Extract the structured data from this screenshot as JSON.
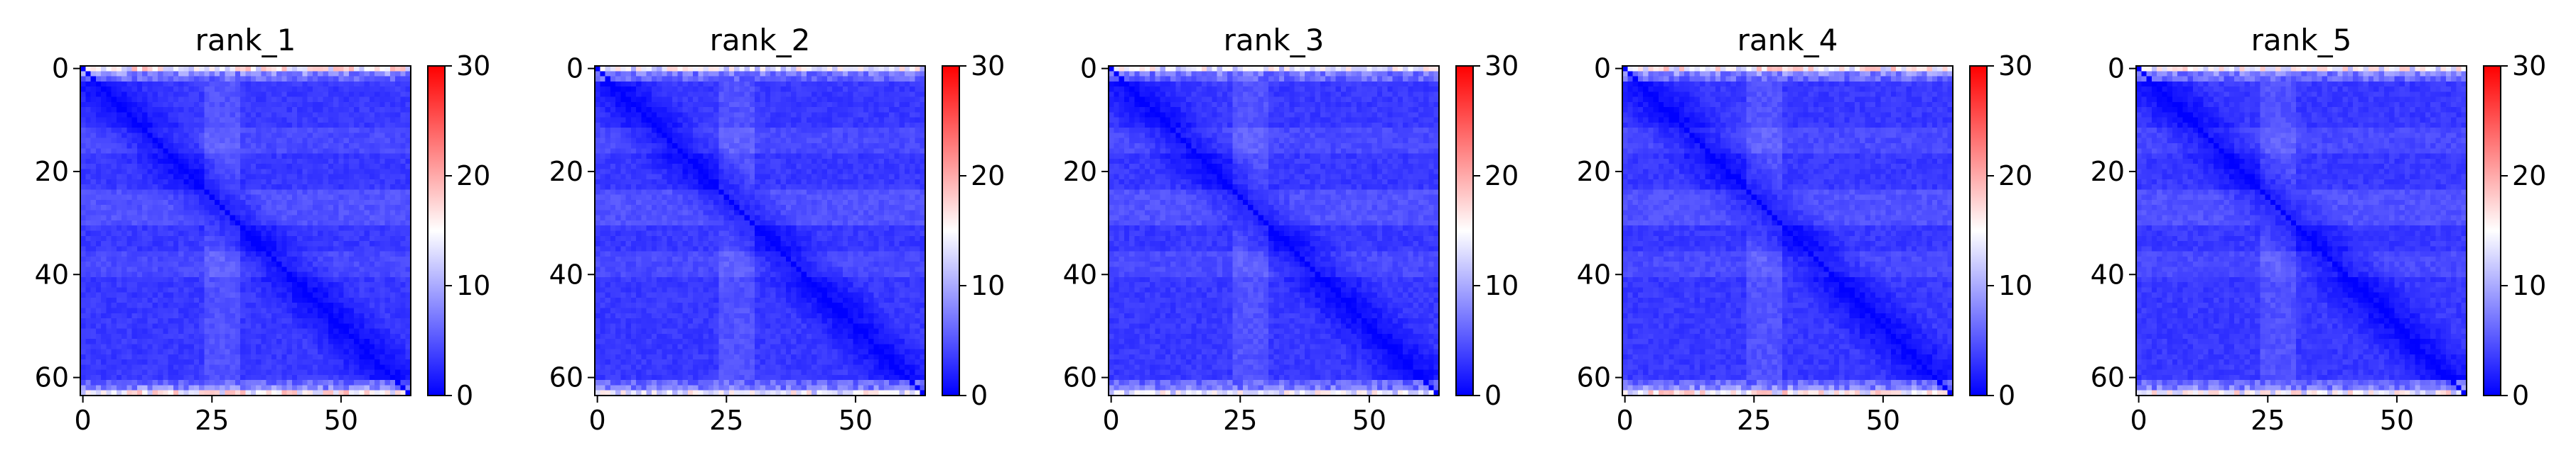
{
  "chart_data": [
    {
      "type": "heatmap",
      "title": "rank_1",
      "matrix_size": 64,
      "xticks": [
        0,
        25,
        50
      ],
      "yticks": [
        0,
        20,
        40,
        60
      ],
      "colorbar": {
        "min": 0,
        "max": 30,
        "ticks": [
          0,
          10,
          20,
          30
        ],
        "colormap": "bwr"
      },
      "value_pattern": {
        "near_diagonal": 0,
        "typical_off_diagonal": 3,
        "top_bottom_rows": 18,
        "max": 30
      }
    },
    {
      "type": "heatmap",
      "title": "rank_2",
      "matrix_size": 64,
      "xticks": [
        0,
        25,
        50
      ],
      "yticks": [
        0,
        20,
        40,
        60
      ],
      "colorbar": {
        "min": 0,
        "max": 30,
        "ticks": [
          0,
          10,
          20,
          30
        ],
        "colormap": "bwr"
      },
      "value_pattern": {
        "near_diagonal": 0,
        "typical_off_diagonal": 3,
        "top_bottom_rows": 16,
        "max": 30
      }
    },
    {
      "type": "heatmap",
      "title": "rank_3",
      "matrix_size": 64,
      "xticks": [
        0,
        25,
        50
      ],
      "yticks": [
        0,
        20,
        40,
        60
      ],
      "colorbar": {
        "min": 0,
        "max": 30,
        "ticks": [
          0,
          10,
          20,
          30
        ],
        "colormap": "bwr"
      },
      "value_pattern": {
        "near_diagonal": 0,
        "typical_off_diagonal": 3,
        "top_bottom_rows": 16,
        "max": 30
      }
    },
    {
      "type": "heatmap",
      "title": "rank_4",
      "matrix_size": 64,
      "xticks": [
        0,
        25,
        50
      ],
      "yticks": [
        0,
        20,
        40,
        60
      ],
      "colorbar": {
        "min": 0,
        "max": 30,
        "ticks": [
          0,
          10,
          20,
          30
        ],
        "colormap": "bwr"
      },
      "value_pattern": {
        "near_diagonal": 0,
        "typical_off_diagonal": 3,
        "top_bottom_rows": 18,
        "max": 30
      }
    },
    {
      "type": "heatmap",
      "title": "rank_5",
      "matrix_size": 64,
      "xticks": [
        0,
        25,
        50
      ],
      "yticks": [
        0,
        20,
        40,
        60
      ],
      "colorbar": {
        "min": 0,
        "max": 30,
        "ticks": [
          0,
          10,
          20,
          30
        ],
        "colormap": "bwr"
      },
      "value_pattern": {
        "near_diagonal": 0,
        "typical_off_diagonal": 3,
        "top_bottom_rows": 17,
        "max": 30
      }
    }
  ]
}
